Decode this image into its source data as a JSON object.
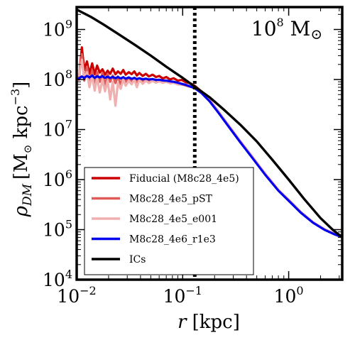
{
  "chart_data": {
    "type": "line",
    "title": "",
    "xlabel_var": "r",
    "xlabel_unit": "[kpc]",
    "ylabel_var": "ρ",
    "ylabel_sub": "DM",
    "ylabel_unit_pre": "[M",
    "ylabel_unit_mid": " kpc",
    "ylabel_unit_exp": "−3",
    "ylabel_unit_post": "]",
    "xscale": "log",
    "yscale": "log",
    "xlim": [
      0.01,
      3.2
    ],
    "ylim": [
      10000,
      2800000000
    ],
    "xticks": [
      {
        "value": 0.01,
        "base": "10",
        "exp": "−2"
      },
      {
        "value": 0.1,
        "base": "10",
        "exp": "−1"
      },
      {
        "value": 1,
        "base": "10",
        "exp": "0"
      }
    ],
    "yticks": [
      {
        "value": 10000,
        "base": "10",
        "exp": "4"
      },
      {
        "value": 100000,
        "base": "10",
        "exp": "5"
      },
      {
        "value": 1000000,
        "base": "10",
        "exp": "6"
      },
      {
        "value": 10000000,
        "base": "10",
        "exp": "7"
      },
      {
        "value": 100000000,
        "base": "10",
        "exp": "8"
      },
      {
        "value": 1000000000,
        "base": "10",
        "exp": "9"
      }
    ],
    "annotation": {
      "base": "10",
      "exp": "8",
      "unit": " M",
      "sun": "⊙"
    },
    "vline": {
      "x": 0.13,
      "style": "dotted"
    },
    "grid": false,
    "legend_position": "lower-left",
    "series": [
      {
        "name": "Fiducial (M8c28_4e5)",
        "color": "#cc0000",
        "width": 3.2,
        "x": [
          0.0105,
          0.0112,
          0.0118,
          0.0125,
          0.0132,
          0.014,
          0.0148,
          0.0156,
          0.0165,
          0.0175,
          0.0185,
          0.0196,
          0.0207,
          0.0219,
          0.0232,
          0.0245,
          0.026,
          0.0275,
          0.029,
          0.031,
          0.033,
          0.035,
          0.037,
          0.039,
          0.042,
          0.045,
          0.048,
          0.052,
          0.056,
          0.06,
          0.065,
          0.07,
          0.076,
          0.082,
          0.09,
          0.098,
          0.107,
          0.117,
          0.13,
          0.15,
          0.18,
          0.22,
          0.28,
          0.35,
          0.45,
          0.6,
          0.8,
          1.0,
          1.3,
          1.7,
          2.2,
          2.7,
          3.2
        ],
        "y": [
          100000000,
          440000000,
          155000000,
          230000000,
          130000000,
          210000000,
          128000000,
          190000000,
          138000000,
          160000000,
          125000000,
          150000000,
          130000000,
          165000000,
          127000000,
          145000000,
          130000000,
          155000000,
          125000000,
          140000000,
          128000000,
          145000000,
          120000000,
          135000000,
          118000000,
          130000000,
          115000000,
          125000000,
          112000000,
          118000000,
          105000000,
          112000000,
          100000000,
          106000000,
          95000000,
          98000000,
          88000000,
          85000000,
          75000000,
          58000000,
          38000000,
          22000000,
          11000000,
          5800000,
          2900000,
          1300000,
          620000,
          390000,
          225000,
          140000,
          100000,
          82000,
          72000
        ]
      },
      {
        "name": "M8c28_4e5_pST",
        "color": "#e05a5a",
        "width": 3.2,
        "x": [
          0.0105,
          0.0112,
          0.0118,
          0.0125,
          0.0132,
          0.014,
          0.0148,
          0.0156,
          0.0165,
          0.0175,
          0.0185,
          0.0196,
          0.0207,
          0.0219,
          0.0232,
          0.0245,
          0.026,
          0.0275,
          0.029,
          0.031,
          0.033,
          0.035,
          0.037,
          0.039,
          0.042,
          0.045,
          0.048,
          0.052,
          0.056,
          0.06,
          0.065,
          0.07,
          0.076,
          0.082,
          0.09,
          0.098,
          0.107,
          0.117,
          0.13,
          0.15,
          0.18,
          0.22,
          0.28,
          0.35,
          0.45,
          0.6,
          0.8,
          1.0,
          1.3,
          1.7,
          2.2,
          2.7,
          3.2
        ],
        "y": [
          110000000,
          320000000,
          95000000,
          180000000,
          85000000,
          150000000,
          80000000,
          140000000,
          90000000,
          135000000,
          75000000,
          130000000,
          90000000,
          120000000,
          85000000,
          115000000,
          80000000,
          112000000,
          90000000,
          110000000,
          85000000,
          108000000,
          88000000,
          105000000,
          90000000,
          100000000,
          92000000,
          100000000,
          90000000,
          96000000,
          88000000,
          92000000,
          85000000,
          88000000,
          80000000,
          80000000,
          76000000,
          72000000,
          68000000,
          55000000,
          37000000,
          21500000,
          10800000,
          5700000,
          2850000,
          1280000,
          610000,
          385000,
          222000,
          139000,
          99000,
          81000,
          71000
        ]
      },
      {
        "name": "M8c28_4e5_e001",
        "color": "#f0b0b0",
        "width": 3.2,
        "x": [
          0.0105,
          0.0112,
          0.0118,
          0.0125,
          0.0132,
          0.014,
          0.0148,
          0.0156,
          0.0165,
          0.0175,
          0.0185,
          0.0196,
          0.0207,
          0.0219,
          0.0232,
          0.0245,
          0.026,
          0.0275,
          0.029,
          0.031,
          0.033,
          0.035,
          0.037,
          0.039,
          0.042,
          0.045,
          0.048,
          0.052,
          0.056,
          0.06,
          0.065,
          0.07,
          0.076,
          0.082,
          0.09,
          0.098,
          0.107,
          0.117,
          0.13,
          0.15,
          0.18,
          0.22,
          0.28,
          0.35,
          0.45,
          0.6,
          0.8,
          1.0,
          1.3,
          1.7,
          2.2,
          2.7,
          3.2
        ],
        "y": [
          120000000,
          250000000,
          110000000,
          140000000,
          70000000,
          120000000,
          60000000,
          110000000,
          55000000,
          100000000,
          58000000,
          95000000,
          40000000,
          90000000,
          30000000,
          85000000,
          65000000,
          100000000,
          75000000,
          95000000,
          80000000,
          100000000,
          70000000,
          98000000,
          82000000,
          95000000,
          85000000,
          94000000,
          86000000,
          92000000,
          86000000,
          90000000,
          84000000,
          86000000,
          80000000,
          82000000,
          78000000,
          75000000,
          70000000,
          56000000,
          37500000,
          21800000,
          10900000,
          5750000,
          2870000,
          1290000,
          615000,
          387000,
          223000,
          139500,
          99500,
          81500,
          71500
        ]
      },
      {
        "name": "M8c28_4e6_r1e3",
        "color": "#0000ee",
        "width": 3.2,
        "x": [
          0.0105,
          0.0112,
          0.0118,
          0.0125,
          0.0132,
          0.014,
          0.0148,
          0.0156,
          0.0165,
          0.0175,
          0.0185,
          0.0196,
          0.0207,
          0.0219,
          0.0232,
          0.0245,
          0.026,
          0.0275,
          0.029,
          0.031,
          0.033,
          0.035,
          0.037,
          0.039,
          0.042,
          0.045,
          0.048,
          0.052,
          0.056,
          0.06,
          0.065,
          0.07,
          0.076,
          0.082,
          0.09,
          0.098,
          0.107,
          0.117,
          0.13,
          0.15,
          0.18,
          0.22,
          0.28,
          0.35,
          0.45,
          0.6,
          0.8,
          1.0,
          1.3,
          1.7,
          2.2,
          2.7,
          3.2
        ],
        "y": [
          105000000,
          115000000,
          108000000,
          118000000,
          110000000,
          120000000,
          108000000,
          116000000,
          110000000,
          117000000,
          108000000,
          114000000,
          107000000,
          113000000,
          106000000,
          112000000,
          105000000,
          111000000,
          104000000,
          110000000,
          103000000,
          108000000,
          102000000,
          106000000,
          101000000,
          104000000,
          100000000,
          102000000,
          98000000,
          99000000,
          96000000,
          95000000,
          92000000,
          90000000,
          86000000,
          82000000,
          78000000,
          73000000,
          67000000,
          54000000,
          36500000,
          21000000,
          10500000,
          5550000,
          2780000,
          1250000,
          600000,
          378000,
          218000,
          137000,
          98000,
          80500,
          70800
        ]
      },
      {
        "name": "ICs",
        "color": "#000000",
        "width": 3.4,
        "x": [
          0.01,
          0.0135,
          0.018,
          0.025,
          0.035,
          0.05,
          0.07,
          0.1,
          0.13,
          0.18,
          0.25,
          0.35,
          0.5,
          0.7,
          1.0,
          1.4,
          2.0,
          2.6,
          3.2
        ],
        "y": [
          2500000000,
          1800000000,
          1250000000,
          800000000,
          500000000,
          300000000,
          180000000,
          108000000,
          72000000,
          44000000,
          24000000,
          12500000,
          5800000,
          2500000,
          1000000,
          410000,
          170000,
          100000,
          70000
        ]
      }
    ]
  }
}
